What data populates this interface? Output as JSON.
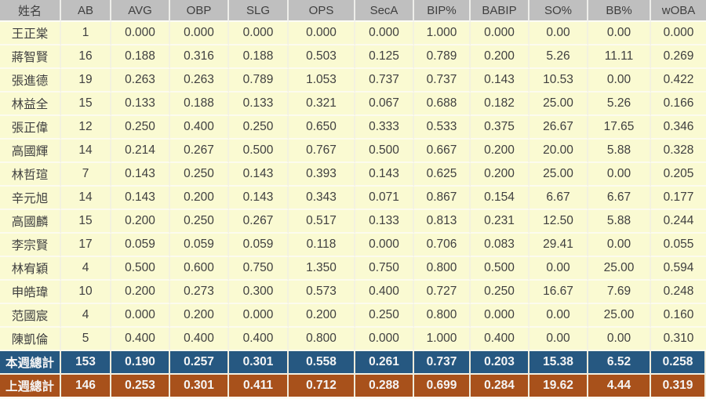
{
  "colors": {
    "header_bg": "#BFBFBF",
    "header_text": "#3F3F3F",
    "row_bg": "#FAFAD2",
    "text": "#404040",
    "this_week_bg": "#265881",
    "last_week_bg": "#A8511B",
    "total_text": "#F5F5F5"
  },
  "chart_data": {
    "type": "table",
    "title": "",
    "columns": [
      "姓名",
      "AB",
      "AVG",
      "OBP",
      "SLG",
      "OPS",
      "SecA",
      "BIP%",
      "BABIP",
      "SO%",
      "BB%",
      "wOBA"
    ],
    "rows": [
      {
        "name": "王正棠",
        "values": [
          "1",
          "0.000",
          "0.000",
          "0.000",
          "0.000",
          "0.000",
          "1.000",
          "0.000",
          "0.00",
          "0.00",
          "0.000"
        ]
      },
      {
        "name": "蔣智賢",
        "values": [
          "16",
          "0.188",
          "0.316",
          "0.188",
          "0.503",
          "0.125",
          "0.789",
          "0.200",
          "5.26",
          "11.11",
          "0.269"
        ]
      },
      {
        "name": "張進德",
        "values": [
          "19",
          "0.263",
          "0.263",
          "0.789",
          "1.053",
          "0.737",
          "0.737",
          "0.143",
          "10.53",
          "0.00",
          "0.422"
        ]
      },
      {
        "name": "林益全",
        "values": [
          "15",
          "0.133",
          "0.188",
          "0.133",
          "0.321",
          "0.067",
          "0.688",
          "0.182",
          "25.00",
          "5.26",
          "0.166"
        ]
      },
      {
        "name": "張正偉",
        "values": [
          "12",
          "0.250",
          "0.400",
          "0.250",
          "0.650",
          "0.333",
          "0.533",
          "0.375",
          "26.67",
          "17.65",
          "0.346"
        ]
      },
      {
        "name": "高國輝",
        "values": [
          "14",
          "0.214",
          "0.267",
          "0.500",
          "0.767",
          "0.500",
          "0.667",
          "0.200",
          "20.00",
          "5.88",
          "0.328"
        ]
      },
      {
        "name": "林哲瑄",
        "values": [
          "7",
          "0.143",
          "0.250",
          "0.143",
          "0.393",
          "0.143",
          "0.625",
          "0.200",
          "25.00",
          "0.00",
          "0.205"
        ]
      },
      {
        "name": "辛元旭",
        "values": [
          "14",
          "0.143",
          "0.200",
          "0.143",
          "0.343",
          "0.071",
          "0.867",
          "0.154",
          "6.67",
          "6.67",
          "0.177"
        ]
      },
      {
        "name": "高國麟",
        "values": [
          "15",
          "0.200",
          "0.250",
          "0.267",
          "0.517",
          "0.133",
          "0.813",
          "0.231",
          "12.50",
          "5.88",
          "0.244"
        ]
      },
      {
        "name": "李宗賢",
        "values": [
          "17",
          "0.059",
          "0.059",
          "0.059",
          "0.118",
          "0.000",
          "0.706",
          "0.083",
          "29.41",
          "0.00",
          "0.055"
        ]
      },
      {
        "name": "林宥穎",
        "values": [
          "4",
          "0.500",
          "0.600",
          "0.750",
          "1.350",
          "0.750",
          "0.800",
          "0.500",
          "0.00",
          "25.00",
          "0.594"
        ]
      },
      {
        "name": "申皓瑋",
        "values": [
          "10",
          "0.200",
          "0.273",
          "0.300",
          "0.573",
          "0.400",
          "0.727",
          "0.250",
          "16.67",
          "7.69",
          "0.248"
        ]
      },
      {
        "name": "范國宸",
        "values": [
          "4",
          "0.000",
          "0.200",
          "0.000",
          "0.200",
          "0.250",
          "0.800",
          "0.000",
          "0.00",
          "25.00",
          "0.160"
        ]
      },
      {
        "name": "陳凱倫",
        "values": [
          "5",
          "0.400",
          "0.400",
          "0.400",
          "0.800",
          "0.000",
          "1.000",
          "0.400",
          "0.00",
          "0.00",
          "0.310"
        ]
      }
    ],
    "totals": [
      {
        "label": "本週總計",
        "style": "this-week",
        "values": [
          "153",
          "0.190",
          "0.257",
          "0.301",
          "0.558",
          "0.261",
          "0.737",
          "0.203",
          "15.38",
          "6.52",
          "0.258"
        ]
      },
      {
        "label": "上週總計",
        "style": "last-week",
        "values": [
          "146",
          "0.253",
          "0.301",
          "0.411",
          "0.712",
          "0.288",
          "0.699",
          "0.284",
          "19.62",
          "4.44",
          "0.319"
        ]
      }
    ]
  }
}
